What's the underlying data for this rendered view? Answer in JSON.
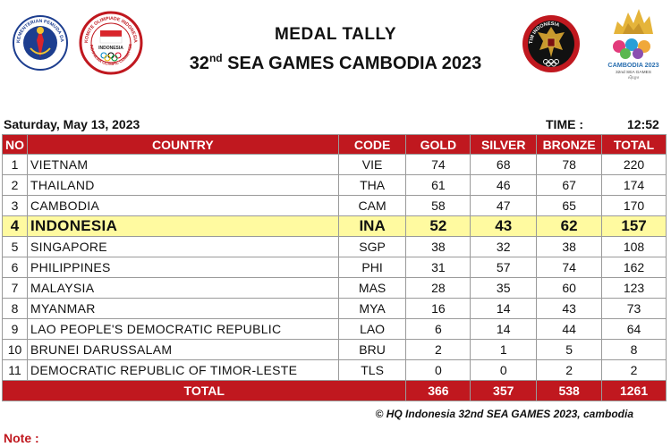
{
  "header": {
    "title_line1": "MEDAL TALLY",
    "title_line2_prefix": "32",
    "title_line2_sup": "nd",
    "title_line2_rest": " SEA GAMES CAMBODIA 2023",
    "logos": {
      "kemenpora": "KEMENTERIAN PEMUDA DAN OLAHRAGA · REPUBLIK INDONESIA",
      "koi_top": "KOMITE OLIMPIADE INDONESIA",
      "koi_mid": "INDONESIA",
      "koi_bottom": "INDONESIA OLYMPIC COMMITTEE",
      "tim": "TIM INDONESIA",
      "sea_line1": "CAMBODIA 2023",
      "sea_line2": "32nd SEA GAMES",
      "sea_line3": "ស៊ីហ្គេម"
    }
  },
  "info": {
    "date": "Saturday, May 13, 2023",
    "time_label": "TIME :",
    "time_value": "12:52"
  },
  "table": {
    "headers": {
      "no": "NO",
      "country": "COUNTRY",
      "code": "CODE",
      "gold": "GOLD",
      "silver": "SILVER",
      "bronze": "BRONZE",
      "total": "TOTAL"
    },
    "rows": [
      {
        "no": "1",
        "country": "VIETNAM",
        "code": "VIE",
        "gold": "74",
        "silver": "68",
        "bronze": "78",
        "total": "220"
      },
      {
        "no": "2",
        "country": "THAILAND",
        "code": "THA",
        "gold": "61",
        "silver": "46",
        "bronze": "67",
        "total": "174"
      },
      {
        "no": "3",
        "country": "CAMBODIA",
        "code": "CAM",
        "gold": "58",
        "silver": "47",
        "bronze": "65",
        "total": "170"
      },
      {
        "no": "4",
        "country": "INDONESIA",
        "code": "INA",
        "gold": "52",
        "silver": "43",
        "bronze": "62",
        "total": "157"
      },
      {
        "no": "5",
        "country": "SINGAPORE",
        "code": "SGP",
        "gold": "38",
        "silver": "32",
        "bronze": "38",
        "total": "108"
      },
      {
        "no": "6",
        "country": "PHILIPPINES",
        "code": "PHI",
        "gold": "31",
        "silver": "57",
        "bronze": "74",
        "total": "162"
      },
      {
        "no": "7",
        "country": "MALAYSIA",
        "code": "MAS",
        "gold": "28",
        "silver": "35",
        "bronze": "60",
        "total": "123"
      },
      {
        "no": "8",
        "country": "MYANMAR",
        "code": "MYA",
        "gold": "16",
        "silver": "14",
        "bronze": "43",
        "total": "73"
      },
      {
        "no": "9",
        "country": "LAO PEOPLE'S DEMOCRATIC REPUBLIC",
        "code": "LAO",
        "gold": "6",
        "silver": "14",
        "bronze": "44",
        "total": "64"
      },
      {
        "no": "10",
        "country": "BRUNEI DARUSSALAM",
        "code": "BRU",
        "gold": "2",
        "silver": "1",
        "bronze": "5",
        "total": "8"
      },
      {
        "no": "11",
        "country": "DEMOCRATIC REPUBLIC OF TIMOR-LESTE",
        "code": "TLS",
        "gold": "0",
        "silver": "0",
        "bronze": "2",
        "total": "2"
      }
    ],
    "totals": {
      "label": "TOTAL",
      "gold": "366",
      "silver": "357",
      "bronze": "538",
      "total": "1261"
    }
  },
  "footer": {
    "copyright": "© HQ Indonesia 32nd SEA GAMES 2023, cambodia",
    "note_label": "Note :"
  },
  "colors": {
    "header_red": "#c0181f",
    "highlight_yellow": "#fffaa0"
  }
}
